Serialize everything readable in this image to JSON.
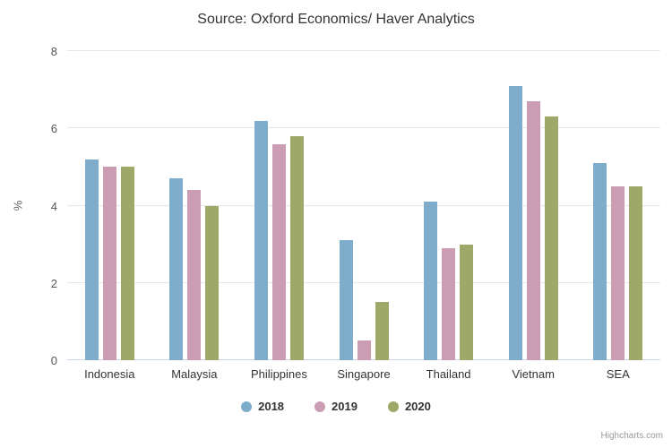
{
  "title": "Source: Oxford Economics/ Haver Analytics",
  "credits_label": "Highcharts.com",
  "chart_data": {
    "type": "bar",
    "subtype": "grouped-vertical-column",
    "title": "Source: Oxford Economics/ Haver Analytics",
    "categories": [
      "Indonesia",
      "Malaysia",
      "Philippines",
      "Singapore",
      "Thailand",
      "Vietnam",
      "SEA"
    ],
    "series": [
      {
        "name": "2018",
        "color": "#7dadca",
        "values": [
          5.2,
          4.7,
          6.2,
          3.1,
          4.1,
          7.1,
          5.1
        ]
      },
      {
        "name": "2019",
        "color": "#cb9db3",
        "values": [
          5.0,
          4.4,
          5.6,
          0.5,
          2.9,
          6.7,
          4.5
        ]
      },
      {
        "name": "2020",
        "color": "#9ea868",
        "values": [
          5.0,
          4.0,
          5.8,
          1.5,
          3.0,
          6.3,
          4.5
        ]
      }
    ],
    "xlabel": "",
    "ylabel": "%",
    "ylim": [
      0,
      8
    ],
    "yticks": [
      0,
      2,
      4,
      6,
      8
    ],
    "grid": true,
    "legend_position": "bottom",
    "gridline_color": "#e6e6e6",
    "axis_line_color": "#ccd6eb"
  }
}
